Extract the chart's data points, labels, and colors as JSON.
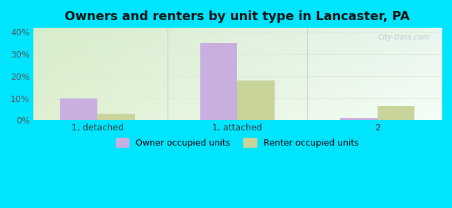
{
  "title": "Owners and renters by unit type in Lancaster, PA",
  "categories": [
    "1, detached",
    "1, attached",
    "2"
  ],
  "owner_values": [
    10.0,
    35.0,
    1.0
  ],
  "renter_values": [
    3.0,
    18.0,
    6.5
  ],
  "owner_color": "#c9aee0",
  "renter_color": "#c8d49a",
  "background_color_outer": "#00e5ff",
  "background_color_inner_topleft": "#d6edca",
  "background_color_inner_topright": "#e8f5ee",
  "background_color_inner_bottomleft": "#dff0d0",
  "background_color_inner_bottomright": "#f5fef8",
  "ylim": [
    0,
    42
  ],
  "yticks": [
    0,
    10,
    20,
    30,
    40
  ],
  "bar_width": 0.32,
  "legend_owner": "Owner occupied units",
  "legend_renter": "Renter occupied units",
  "title_fontsize": 13,
  "watermark": "City-Data.com",
  "grid_color": "#e0ead8",
  "divider_color": "#cccccc"
}
